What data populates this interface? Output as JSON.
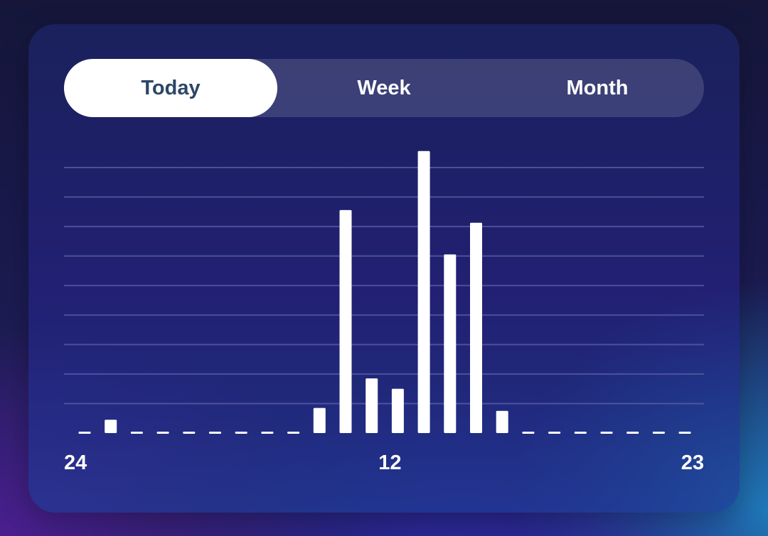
{
  "tabs": [
    {
      "label": "Today",
      "active": true
    },
    {
      "label": "Week",
      "active": false
    },
    {
      "label": "Month",
      "active": false
    }
  ],
  "colors": {
    "bar": "#ffffff",
    "gridline": "#5e5fa8",
    "active_tab_text": "#2c4766"
  },
  "chart_data": {
    "type": "bar",
    "categories": [
      0,
      1,
      2,
      3,
      4,
      5,
      6,
      7,
      8,
      9,
      10,
      11,
      12,
      13,
      14,
      15,
      16,
      17,
      18,
      19,
      20,
      21,
      22,
      23
    ],
    "values": [
      0,
      0.45,
      0,
      0,
      0,
      0,
      0,
      0,
      0,
      0.85,
      7.55,
      1.85,
      1.5,
      9.55,
      6.05,
      7.12,
      0.75,
      0,
      0,
      0,
      0,
      0,
      0,
      0
    ],
    "tick_labels": [
      {
        "category": 0,
        "label": "24",
        "align": "start"
      },
      {
        "category": 12,
        "label": "12",
        "align": "middle"
      },
      {
        "category": 23,
        "label": "23",
        "align": "end"
      }
    ],
    "ylim": [
      0,
      10
    ],
    "gridlines": 9,
    "grid": true,
    "zero_marker": "dash",
    "title": "",
    "xlabel": "",
    "ylabel": ""
  }
}
